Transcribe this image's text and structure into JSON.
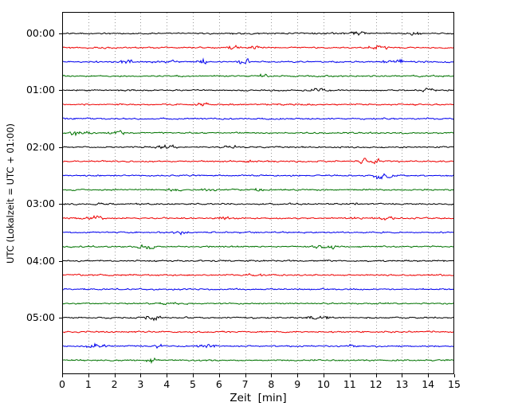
{
  "figure": {
    "background": "#ffffff"
  },
  "chart_data": {
    "type": "line",
    "subtype": "helicorder-dayplot",
    "title": "",
    "xlabel": "Zeit  [min]",
    "ylabel": "UTC (Lokalzeit = UTC + 01:00)",
    "xlim": [
      0,
      15
    ],
    "minutes_per_line": 15,
    "x_ticks": [
      "0",
      "1",
      "2",
      "3",
      "4",
      "5",
      "6",
      "7",
      "8",
      "9",
      "10",
      "11",
      "12",
      "13",
      "14",
      "15"
    ],
    "y_ticks": [
      "00:00",
      "01:00",
      "02:00",
      "03:00",
      "04:00",
      "05:00"
    ],
    "grid": {
      "vertical": "dotted",
      "horizontal": "none",
      "color": "#999999"
    },
    "trace_color_cycle": [
      "#000000",
      "#ee0000",
      "#0000ee",
      "#007300"
    ],
    "traces": [
      {
        "start": "00:00",
        "color_index": 0
      },
      {
        "start": "00:15",
        "color_index": 1
      },
      {
        "start": "00:30",
        "color_index": 2
      },
      {
        "start": "00:45",
        "color_index": 3
      },
      {
        "start": "01:00",
        "color_index": 0
      },
      {
        "start": "01:15",
        "color_index": 1
      },
      {
        "start": "01:30",
        "color_index": 2
      },
      {
        "start": "01:45",
        "color_index": 3
      },
      {
        "start": "02:00",
        "color_index": 0
      },
      {
        "start": "02:15",
        "color_index": 1
      },
      {
        "start": "02:30",
        "color_index": 2
      },
      {
        "start": "02:45",
        "color_index": 3
      },
      {
        "start": "03:00",
        "color_index": 0
      },
      {
        "start": "03:15",
        "color_index": 1
      },
      {
        "start": "03:30",
        "color_index": 2
      },
      {
        "start": "03:45",
        "color_index": 3
      },
      {
        "start": "04:00",
        "color_index": 0
      },
      {
        "start": "04:15",
        "color_index": 1
      },
      {
        "start": "04:30",
        "color_index": 2
      },
      {
        "start": "04:45",
        "color_index": 3
      },
      {
        "start": "05:00",
        "color_index": 0
      },
      {
        "start": "05:15",
        "color_index": 1
      },
      {
        "start": "05:30",
        "color_index": 2
      },
      {
        "start": "05:45",
        "color_index": 3
      }
    ]
  }
}
